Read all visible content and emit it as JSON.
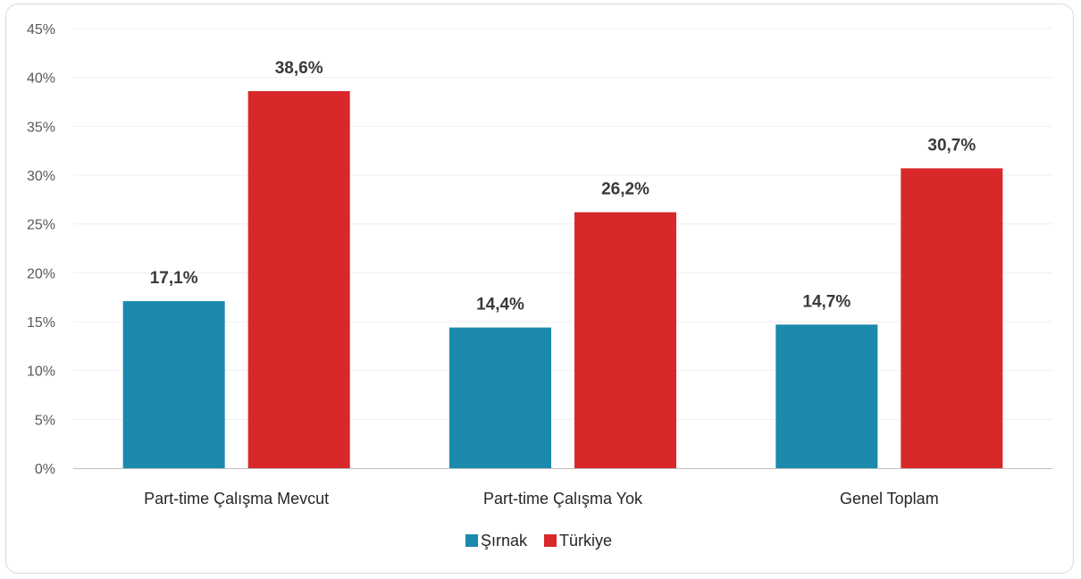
{
  "chart_data": {
    "type": "bar",
    "categories": [
      "Part-time Çalışma Mevcut",
      "Part-time Çalışma Yok",
      "Genel Toplam"
    ],
    "series": [
      {
        "name": "Şırnak",
        "color": "#1b8aad",
        "values": [
          17.1,
          14.4,
          14.7
        ],
        "labels": [
          "17,1%",
          "14,4%",
          "14,7%"
        ]
      },
      {
        "name": "Türkiye",
        "color": "#d9282a",
        "values": [
          38.6,
          26.2,
          30.7
        ],
        "labels": [
          "38,6%",
          "26,2%",
          "30,7%"
        ]
      }
    ],
    "ylim": [
      0,
      45
    ],
    "y_ticks": [
      0,
      5,
      10,
      15,
      20,
      25,
      30,
      35,
      40,
      45
    ],
    "y_tick_labels": [
      "0%",
      "5%",
      "10%",
      "15%",
      "20%",
      "25%",
      "30%",
      "35%",
      "40%",
      "45%"
    ],
    "grid": true,
    "legend": "bottom-center",
    "title": "",
    "xlabel": "",
    "ylabel": ""
  }
}
